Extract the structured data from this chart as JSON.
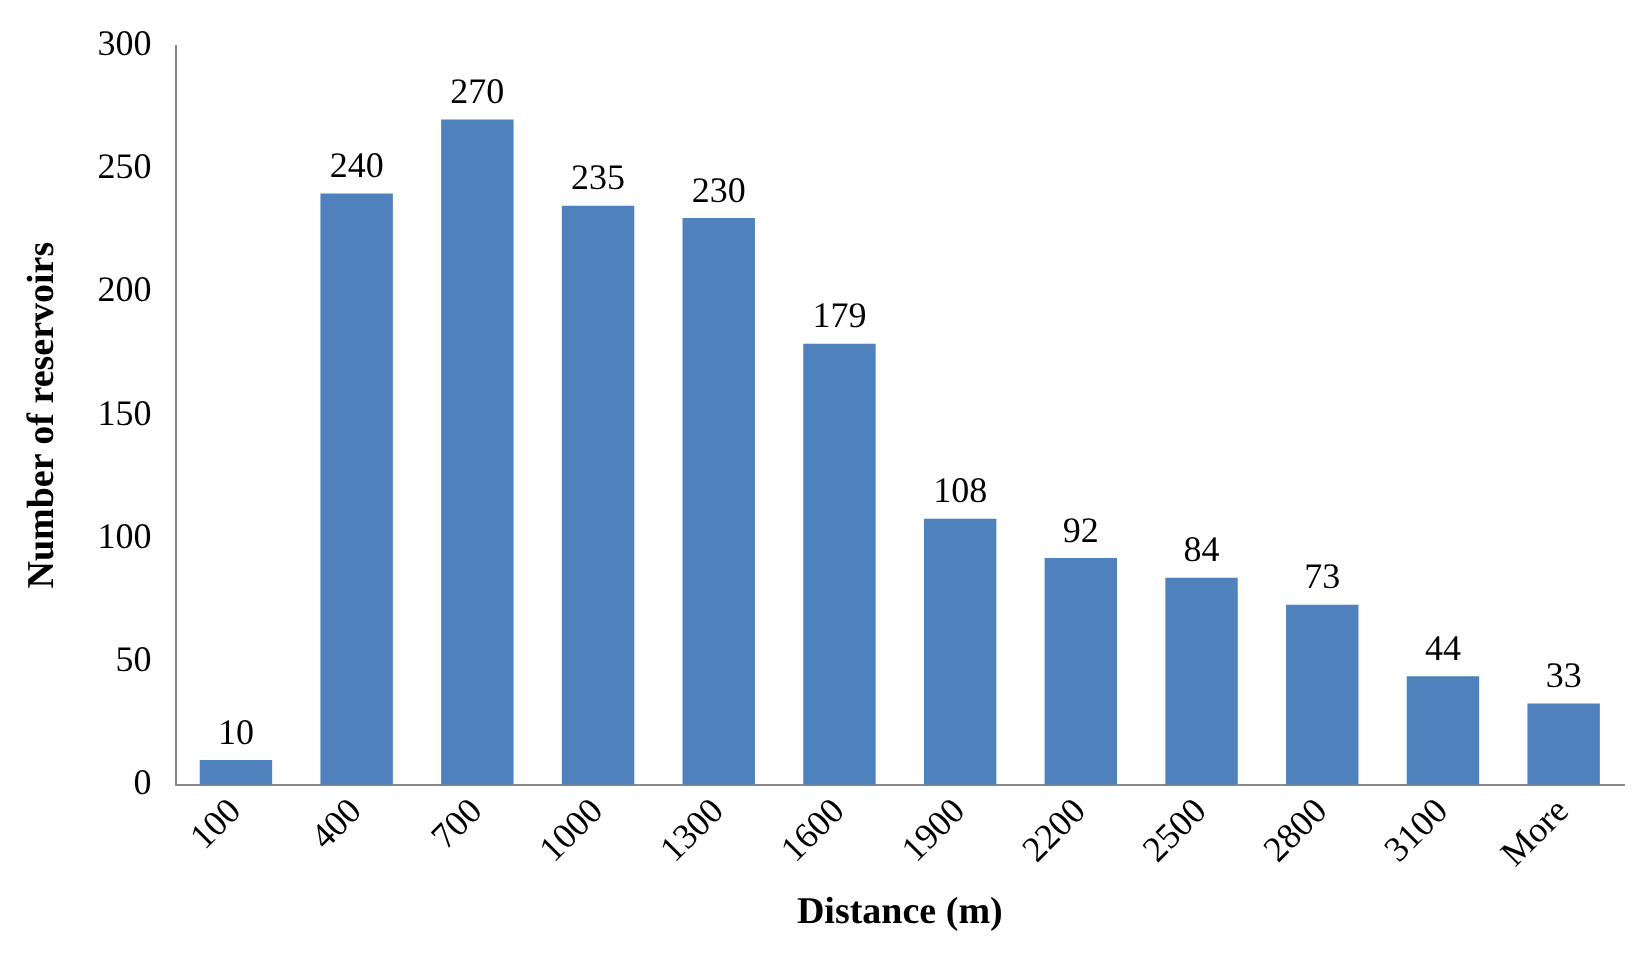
{
  "chart_data": {
    "type": "bar",
    "xlabel": "Distance (m)",
    "ylabel": "Number of reservoirs",
    "categories": [
      "100",
      "400",
      "700",
      "1000",
      "1300",
      "1600",
      "1900",
      "2200",
      "2500",
      "2800",
      "3100",
      "More"
    ],
    "values": [
      10,
      240,
      270,
      235,
      230,
      179,
      108,
      92,
      84,
      73,
      44,
      33
    ],
    "color": "#4f81bd",
    "ylim": [
      0,
      300
    ],
    "yticks": [
      0,
      50,
      100,
      150,
      200,
      250,
      300
    ],
    "grid": false,
    "legend": false,
    "data_labels": true
  }
}
